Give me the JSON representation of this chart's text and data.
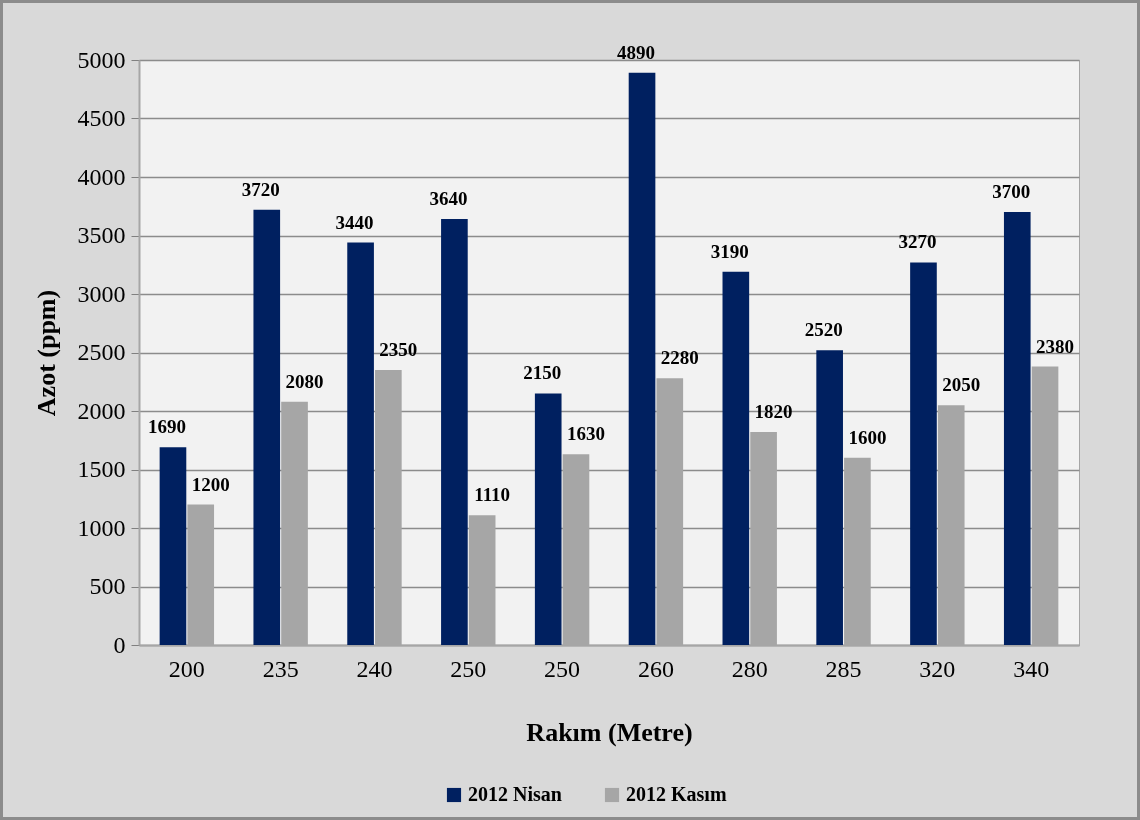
{
  "chart_data": {
    "type": "bar",
    "xlabel": "Rakım (Metre)",
    "ylabel": "Azot (ppm)",
    "categories": [
      "200",
      "235",
      "240",
      "250",
      "250",
      "260",
      "280",
      "285",
      "320",
      "340"
    ],
    "series": [
      {
        "name": "2012 Nisan",
        "color": "#002060",
        "values": [
          1690,
          3720,
          3440,
          3640,
          2150,
          4890,
          3190,
          2520,
          3270,
          3700
        ]
      },
      {
        "name": "2012 Kasım",
        "color": "#a6a6a6",
        "values": [
          1200,
          2080,
          2350,
          1110,
          1630,
          2280,
          1820,
          1600,
          2050,
          2380
        ]
      }
    ],
    "ylim": [
      0,
      5000
    ],
    "yticks": [
      0,
      500,
      1000,
      1500,
      2000,
      2500,
      3000,
      3500,
      4000,
      4500,
      5000
    ],
    "grid": "y",
    "legend": "bottom",
    "data_labels": true
  }
}
